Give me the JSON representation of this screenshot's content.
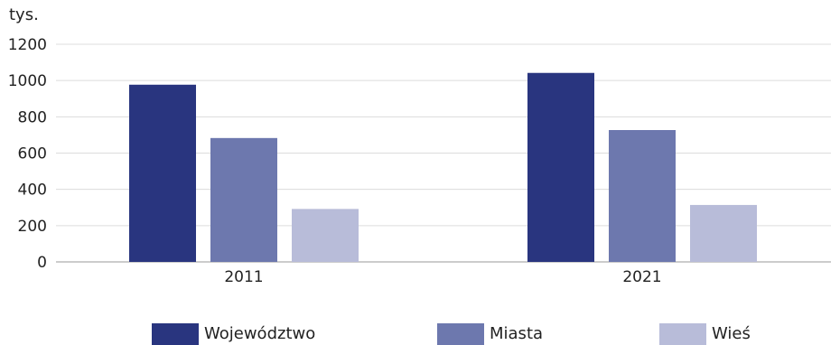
{
  "chart_data": {
    "type": "bar",
    "unit_label": "tys.",
    "categories": [
      "2011",
      "2021"
    ],
    "series": [
      {
        "name": "Województwo",
        "color": "#29357f",
        "values": [
          977,
          1042
        ]
      },
      {
        "name": "Miasta",
        "color": "#6d78ae",
        "values": [
          683,
          727
        ]
      },
      {
        "name": "Wieś",
        "color": "#b8bcd9",
        "values": [
          292,
          314
        ]
      }
    ],
    "y_ticks": [
      "0",
      "200",
      "400",
      "600",
      "800",
      "1000",
      "1200"
    ],
    "ylim": [
      0,
      1200
    ],
    "grid": true,
    "legend_position": "bottom"
  }
}
